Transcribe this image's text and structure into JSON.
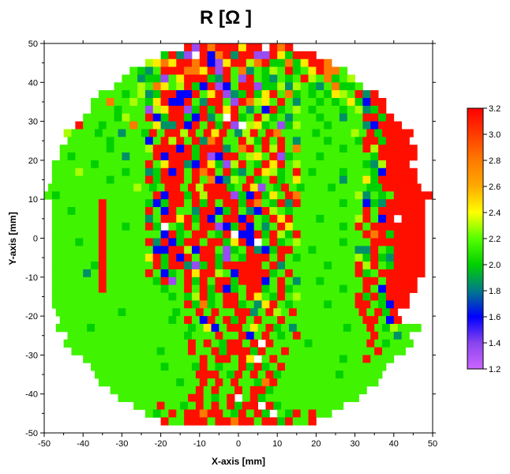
{
  "chart_data": {
    "type": "heatmap",
    "title": "R [Ω ]",
    "xlabel": "X-axis [mm]",
    "ylabel": "Y-axis [mm]",
    "xlim": [
      -50,
      50
    ],
    "ylim": [
      -50,
      50
    ],
    "xticks": [
      "-50",
      "-40",
      "-30",
      "-20",
      "-10",
      "0",
      "10",
      "20",
      "30",
      "40",
      "50"
    ],
    "yticks": [
      "50",
      "40",
      "30",
      "20",
      "10",
      "0",
      "-10",
      "-20",
      "-30",
      "-40",
      "-50"
    ],
    "cell_size_mm": 2,
    "grid_note": "rows listed from y=49 down to y=-47; each row string is centered on x=0; one char per 2mm cell",
    "code_values": {
      "r": 3.15,
      "o": 2.8,
      "y": 2.45,
      "l": 2.3,
      "g": 2.15,
      "G": 2.0,
      "t": 1.85,
      "b": 1.6,
      "p": 1.35,
      "w": null
    },
    "rows": [
      "rprorrryrrwror",
      "GrtpwrbortrrppryGrrr",
      "lyoyrrorbpyrrlorGGoGyrro",
      "gGtgrrrooyrprgotgGlgrGgyroog",
      "ggtGGpgyrrrGtrgprgGtgGgrlgoGgl",
      "ggglgoyglrGbrpbgrrpGGltlgGtgoGGg",
      "gggGgltGrrbbrgyrptGrGyrgoGgGgGylgrtr",
      "ggogglgGyrbbrgtrrgprolygrgtggGgGgyGbrr",
      "gggGgggplyrrpGrGryrgtgbrGglgGgggGgltGr",
      "ggggGlggrbGrrGbrtgwrGgrlGgtgggGggtggrrGr",
      "rggGgggoggyttrbrgrGrpwlyGgpGlgggGggggtbrrr",
      "lgggGggtggGrgrrlrgryrgtlrgroggggGgggglgrGrrrr",
      "gggggGggggbgrlrgrtorggrlGrgrgtgggGgggGrrGrrr",
      "ggggggGgggglrrrbrGrrrtgorgrlrgogggggGggrlrrrrr",
      "gGggggggtgggrbrrrGrpbrrglygrpGgggGggggggGrrrrr",
      "gggggGggggggrgyrrtbryGplrgGryrglggggggggGtlrrrww",
      "ggglgggggGggtGrbrgrorgrGtgrylGgrgGgggGgggGbrrrrw",
      "gggggggGggggrGrrrgrgobtlgrGgrGgygggggtggyGrrrrrw",
      "gggggggggggl GgrrgrlrrrGgrypgGrgGgggGggggGGrrrrrw",
      "gGggggggggggdgrbrrGrlrrrpGbrGygroggggggglt Ggrrrrr",
      "ggggggrgggggGbGrrgrGrgrrGrogGrtrgggggGggbGtrrrrr",
      "ggGgggrgggggrgbrggtrrbGrgtbrlgGgggggggggrgrrrrrr",
      "ggggggrgggggtgrryrGrbgrrbrgGryrgggGgggglrgbrwrrr",
      "ggggggrggGggrGwgGrgrrpbGrbgtgryggggggGgrgrrrrrrr",
      "ggggggrgggggggbrGgrrgGrwbbrGrlGrggggggggrorGrrrr",
      "gggGggrgggggrtrbGrrgrrGyrbwgrGglgggggGgggrrrrrrr",
      "ggggggrggggggbbrrlbrrgpGgrtbGrrggGgggggttrgGrrrr",
      "ggggggrgggggyrGrbrgrrGpgGrrrgrgGggggggglGrGtrrrr",
      "gggggGrggggggrGrrtpGrGrrrrrgrtgggggGgggrlrgGrrrr",
      "ggggtgrgggggrgbGgryrrlgbrrrrGgrggggggggrGgrrrrrr",
      "ggggggrggggggGrpgrGrgrrGrrrbgrgtggGgggggrrgrrrrw",
      "ggggggrgggggggGggrgrGrbGgrrGgrGggggggGggrgbrrrrw",
      "gggggggggggggggGgGlrGgrrgrygGrglgggggggrGrGrrrww",
      "gggggggggggggggggrGoGgrrGgtyrgGggggGgggrrgGbrrww",
      "ggggggggGggggggGggrgrggrrtgrlgrggggggggrgrGrwww",
      "ggggggggggggggGgrgbrgrGrgrggrggggggggggrrgbrww",
      "ggggGggggggggggggGgybgrrgygrGgtggggggGggrgGlggg",
      "gggggggggggggggGgggrggrbgrgGgrgggggggggrggtg",
      "ggggggggggggggggrgrgGrrgrwrggggGgggggggrgGggg",
      "gggggggggggGgggrggrGrrrGrggrgggggggggggrggg",
      "gggggggggggggggrgrrgrywgrggggggggGggrggg",
      "gggggggggGgggGrgGggrGrGgrggggggggggggg",
      "gggggggggggggrrrgGrgrgrGgggggggGggggg",
      "ggggggggggGggrgrgrggGorggggggggggggg",
      "gggggggggggrgrggrgrrGgggggggggggg",
      "gggggggggrrgGgrwgrGgggggggggggg",
      "gggrggGgrgrgrGrrwrGgggggggg",
      "gGgrgrrorrgGrgrGwgGrgrgg",
      "rggrrrgrrorrgrrGrggr"
    ],
    "colorbar": {
      "min": 1.2,
      "max": 3.2,
      "ticks": [
        "3.2",
        "3.0",
        "2.8",
        "2.6",
        "2.4",
        "2.2",
        "2.0",
        "1.8",
        "1.6",
        "1.4",
        "1.2"
      ],
      "stops": [
        {
          "v": 1.2,
          "c": "#cc66ff"
        },
        {
          "v": 1.4,
          "c": "#8844ee"
        },
        {
          "v": 1.6,
          "c": "#0000ff"
        },
        {
          "v": 1.8,
          "c": "#007a8a"
        },
        {
          "v": 2.0,
          "c": "#00d000"
        },
        {
          "v": 2.2,
          "c": "#55ff00"
        },
        {
          "v": 2.4,
          "c": "#ffff00"
        },
        {
          "v": 2.6,
          "c": "#ffaa00"
        },
        {
          "v": 2.8,
          "c": "#ff7a00"
        },
        {
          "v": 3.0,
          "c": "#ff3c00"
        },
        {
          "v": 3.2,
          "c": "#ff0000"
        }
      ]
    }
  }
}
